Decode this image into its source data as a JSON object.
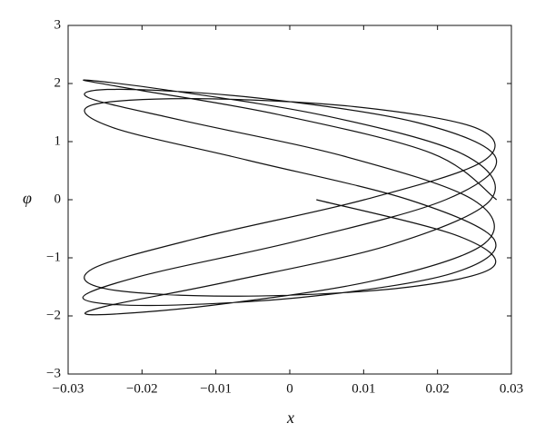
{
  "chart_data": {
    "type": "line",
    "xlabel": "x",
    "ylabel": "φ",
    "xlim": [
      -0.03,
      0.03
    ],
    "ylim": [
      -3,
      3
    ],
    "xticks": [
      {
        "value": -0.03,
        "label": "−0.03"
      },
      {
        "value": -0.02,
        "label": "−0.02"
      },
      {
        "value": -0.01,
        "label": "−0.01"
      },
      0,
      0.01,
      0.02,
      0.03
    ],
    "yticks": [
      {
        "value": -3,
        "label": "−3"
      },
      {
        "value": -2,
        "label": "−2"
      },
      {
        "value": -1,
        "label": "−1"
      },
      0,
      1,
      2,
      3
    ],
    "color": "#111111",
    "x": [
      0.028,
      0.0192,
      -0.0017,
      -0.0215,
      -0.0278,
      -0.0167,
      0.005,
      0.0235,
      0.0272,
      0.0138,
      -0.0083,
      -0.0251,
      -0.0262,
      -0.0107,
      0.0115,
      0.0264,
      0.0248,
      0.0076,
      -0.0144,
      -0.0273,
      -0.0231,
      -0.0043,
      0.0172,
      0.0279,
      0.0211,
      0.001,
      -0.0197,
      -0.028,
      -0.0188,
      0.0024,
      0.0219,
      0.0277,
      0.0161,
      -0.0057,
      -0.0239,
      -0.027,
      -0.0132,
      0.0089,
      0.0255,
      0.026,
      0.0101,
      -0.0121,
      -0.0267,
      -0.0246,
      -0.0069,
      0.015,
      0.0275,
      0.0227,
      0.0036
    ],
    "values": [
      0,
      0.8,
      1.47,
      1.91,
      2.06,
      1.89,
      1.44,
      0.78,
      0,
      -0.77,
      -1.41,
      -1.84,
      -1.98,
      -1.82,
      -1.39,
      -0.75,
      0,
      0.74,
      1.36,
      1.76,
      1.9,
      1.75,
      1.33,
      0.72,
      0,
      -0.71,
      -1.3,
      -1.69,
      -1.82,
      -1.67,
      -1.27,
      -0.69,
      0,
      0.68,
      1.24,
      1.62,
      1.74,
      1.6,
      1.22,
      0.65,
      0,
      -0.65,
      -1.19,
      -1.54,
      -1.66,
      -1.52,
      -1.16,
      -0.62,
      0
    ]
  }
}
